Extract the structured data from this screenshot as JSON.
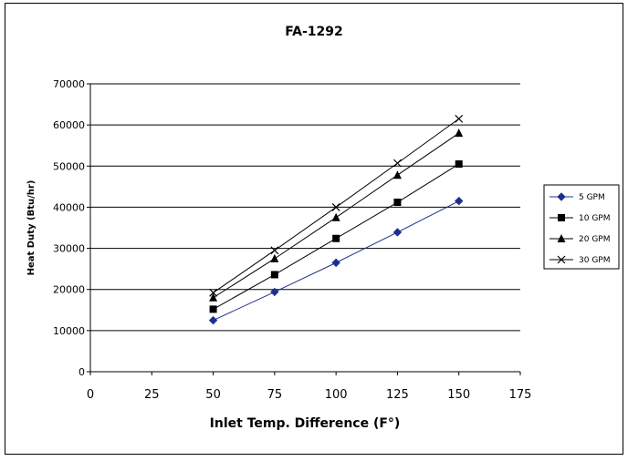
{
  "chart_data": {
    "type": "line",
    "title": "FA-1292",
    "xlabel": "Inlet Temp. Difference (F°)",
    "ylabel": "Heat Duty (Btu/hr)",
    "xlim": [
      0,
      175
    ],
    "ylim": [
      0,
      70000
    ],
    "xticks": [
      "0",
      "25",
      "50",
      "75",
      "100",
      "125",
      "150",
      "175"
    ],
    "yticks": [
      "0",
      "10000",
      "20000",
      "30000",
      "40000",
      "50000",
      "60000",
      "70000"
    ],
    "x": [
      50,
      75,
      100,
      125,
      150
    ],
    "grid": "horizontal",
    "legend_position": "right",
    "series": [
      {
        "name": "5 GPM",
        "values": [
          12500,
          19400,
          26500,
          33900,
          41500
        ],
        "color": "#1f2f8f",
        "marker": "diamond"
      },
      {
        "name": "10 GPM",
        "values": [
          15200,
          23600,
          32400,
          41200,
          50500
        ],
        "color": "#000000",
        "marker": "square"
      },
      {
        "name": "20 GPM",
        "values": [
          18000,
          27500,
          37500,
          47800,
          58000
        ],
        "color": "#000000",
        "marker": "triangle"
      },
      {
        "name": "30 GPM",
        "values": [
          19200,
          29500,
          40000,
          50700,
          61500
        ],
        "color": "#000000",
        "marker": "x"
      }
    ]
  }
}
